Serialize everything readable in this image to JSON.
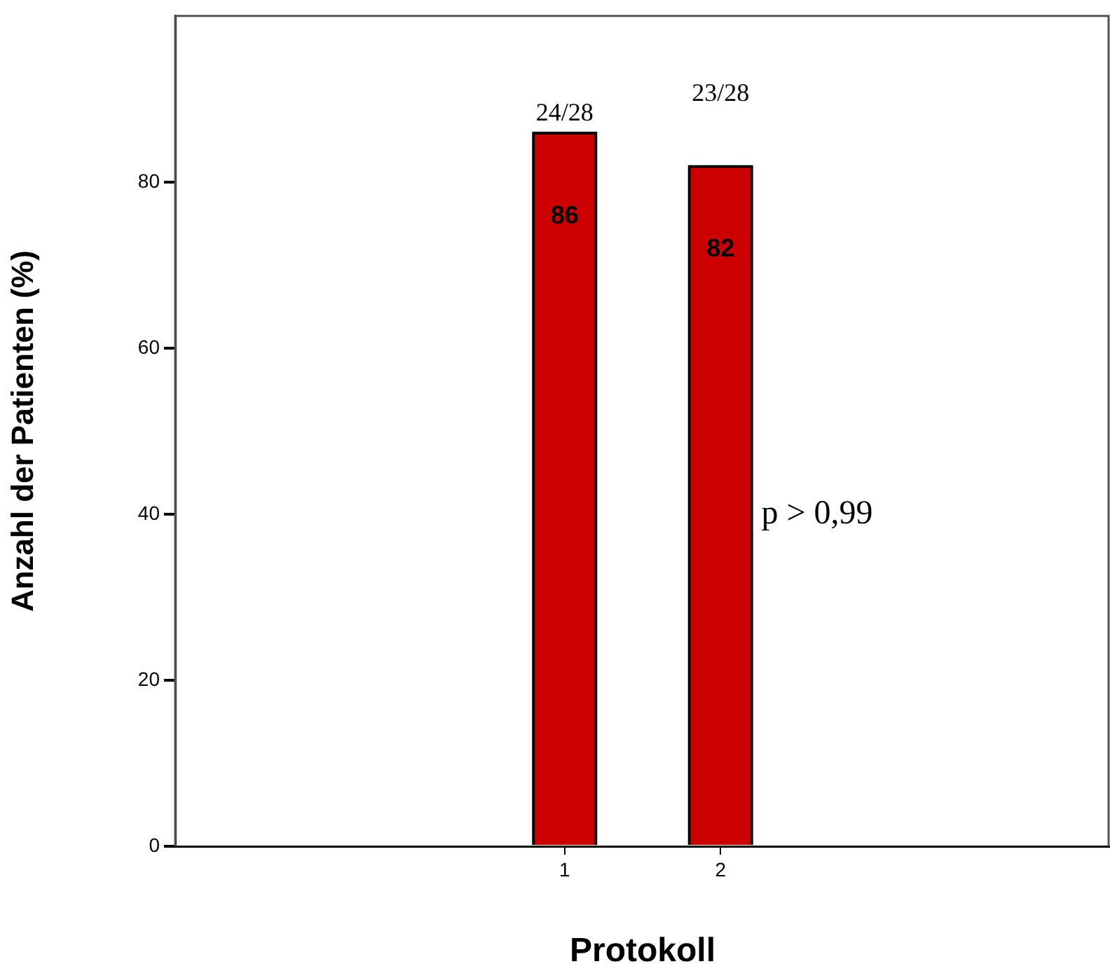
{
  "chart_data": {
    "type": "bar",
    "xlabel": "Protokoll",
    "ylabel": "Anzahl der Patienten (%)",
    "categories": [
      "1",
      "2"
    ],
    "values": [
      86,
      82
    ],
    "color": "#cc0000",
    "ylim": [
      0,
      100
    ],
    "yticks": [
      0,
      20,
      40,
      60,
      80
    ],
    "grid": false,
    "legend": false,
    "data_labels": true,
    "annotations": [
      "24/28",
      "23/28",
      "p > 0,99"
    ]
  }
}
